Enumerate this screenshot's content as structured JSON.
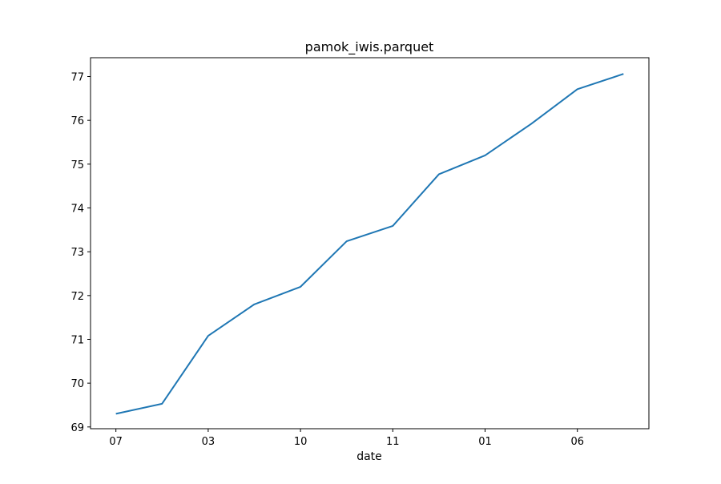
{
  "chart_data": {
    "type": "line",
    "title": "pamok_iwis.parquet",
    "xlabel": "date",
    "ylabel": "",
    "x_ticks": [
      "07",
      "03",
      "10",
      "11",
      "01",
      "06"
    ],
    "x": [
      0,
      1,
      2,
      3,
      4,
      5,
      6,
      7,
      8,
      9,
      10,
      11
    ],
    "ylim": [
      68.96,
      77.43
    ],
    "y_ticks": [
      69,
      70,
      71,
      72,
      73,
      74,
      75,
      76,
      77
    ],
    "grid": false,
    "series": [
      {
        "color": "#1f77b4",
        "values": [
          69.3,
          69.53,
          71.08,
          71.8,
          72.2,
          73.24,
          73.59,
          74.77,
          75.2,
          75.92,
          76.71,
          77.06
        ]
      }
    ]
  }
}
